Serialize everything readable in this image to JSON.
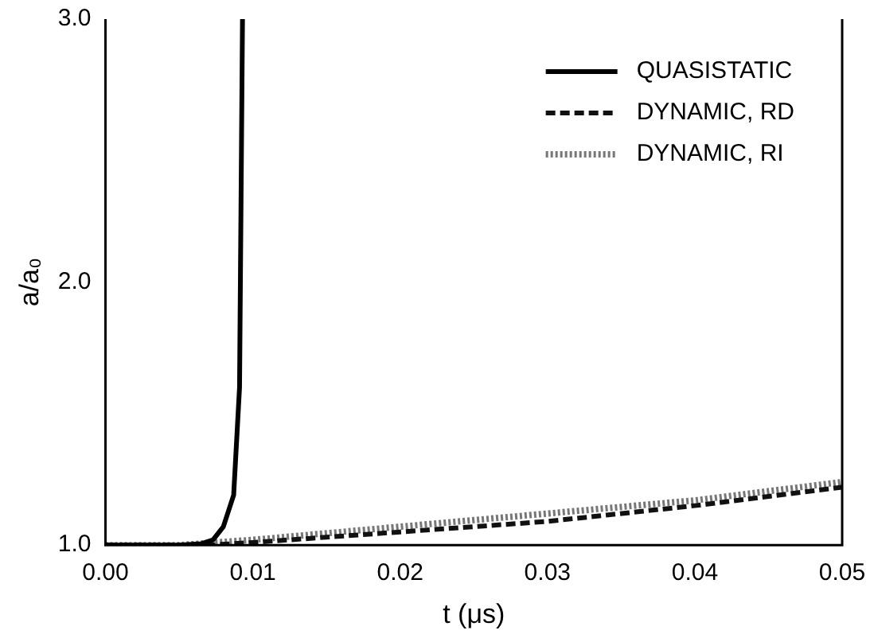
{
  "chart_data": {
    "type": "line",
    "xlabel": "t (μs)",
    "ylabel": "a/a₀",
    "xlim": [
      0,
      0.05
    ],
    "xticks": [
      {
        "value": 0,
        "label": "0.00"
      },
      {
        "value": 0.01,
        "label": "0.01"
      },
      {
        "value": 0.02,
        "label": "0.02"
      },
      {
        "value": 0.03,
        "label": "0.03"
      },
      {
        "value": 0.04,
        "label": "0.04"
      },
      {
        "value": 0.05,
        "label": "0.05"
      }
    ],
    "ylim": [
      1,
      3
    ],
    "yticks": [
      {
        "value": 1,
        "label": "1.0"
      },
      {
        "value": 2,
        "label": "2.0"
      },
      {
        "value": 3,
        "label": "3.0"
      }
    ],
    "grid": false,
    "legend": "top right",
    "marker": "none",
    "series": [
      {
        "name": "QUASISTATIC",
        "color": "#000000",
        "line_style": "solid",
        "x": [
          0,
          0.005,
          0.0065,
          0.0073,
          0.008,
          0.0087,
          0.0091,
          0.0093
        ],
        "values": [
          1,
          1,
          1.005,
          1.02,
          1.07,
          1.19,
          1.6,
          3.0
        ]
      },
      {
        "name": "DYNAMIC, RD",
        "color": "#111111",
        "line_style": "dashed",
        "x": [
          0,
          0.007,
          0.01,
          0.02,
          0.03,
          0.04,
          0.05
        ],
        "values": [
          1,
          1,
          1.01,
          1.05,
          1.09,
          1.15,
          1.22
        ]
      },
      {
        "name": "DYNAMIC, RI",
        "color": "#777777",
        "line_style": "dotted",
        "x": [
          0,
          0.005,
          0.01,
          0.02,
          0.03,
          0.04,
          0.05
        ],
        "values": [
          1,
          1,
          1.02,
          1.07,
          1.12,
          1.17,
          1.24
        ]
      }
    ]
  }
}
